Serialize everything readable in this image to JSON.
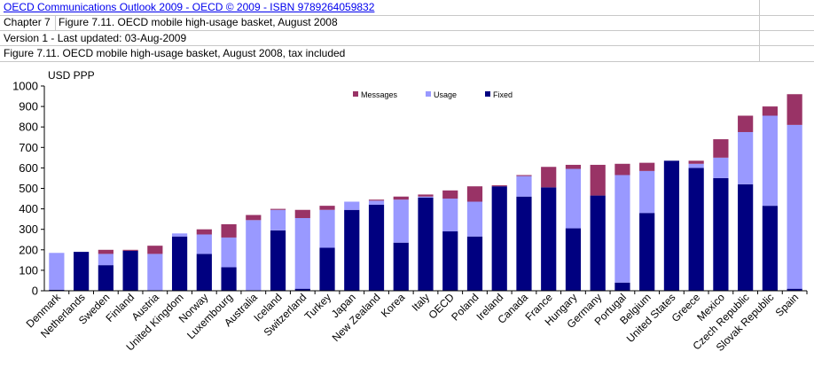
{
  "header": {
    "source_link": "OECD Communications Outlook 2009 - OECD © 2009 - ISBN 9789264059832",
    "chapter": "Chapter 7",
    "figure_title": "Figure 7.11. OECD mobile high-usage basket, August 2008",
    "version": "Version 1 - Last updated: 03-Aug-2009",
    "subtitle": "Figure 7.11. OECD mobile high-usage basket, August 2008, tax included"
  },
  "colors": {
    "fixed": "#000080",
    "usage": "#9999ff",
    "messages": "#993366"
  },
  "chart_data": {
    "type": "bar",
    "stacked": true,
    "ylabel": "USD PPP",
    "ylim": [
      0,
      1000
    ],
    "yticks": [
      0,
      100,
      200,
      300,
      400,
      500,
      600,
      700,
      800,
      900,
      1000
    ],
    "grid": false,
    "legend_position": "top-center",
    "legend_order": [
      "Messages",
      "Usage",
      "Fixed"
    ],
    "categories": [
      "Denmark",
      "Netherlands",
      "Sweden",
      "Finland",
      "Austria",
      "United Kingdom",
      "Norway",
      "Luxembourg",
      "Australia",
      "Iceland",
      "Switzerland",
      "Turkey",
      "Japan",
      "New Zealand",
      "Korea",
      "Italy",
      "OECD",
      "Poland",
      "Ireland",
      "Canada",
      "France",
      "Hungary",
      "Germany",
      "Portugal",
      "Belgium",
      "United States",
      "Greece",
      "Mexico",
      "Czech Republic",
      "Slovak Republic",
      "Spain"
    ],
    "series": [
      {
        "name": "Fixed",
        "color": "#000080",
        "values": [
          5,
          190,
          125,
          195,
          0,
          265,
          180,
          115,
          0,
          295,
          10,
          210,
          395,
          420,
          235,
          455,
          290,
          265,
          510,
          460,
          505,
          305,
          465,
          40,
          380,
          635,
          600,
          550,
          520,
          415,
          10
        ]
      },
      {
        "name": "Usage",
        "color": "#9999ff",
        "values": [
          180,
          0,
          55,
          0,
          180,
          15,
          95,
          145,
          345,
          100,
          345,
          185,
          40,
          20,
          210,
          5,
          160,
          170,
          0,
          100,
          0,
          290,
          0,
          525,
          205,
          0,
          20,
          100,
          255,
          440,
          800
        ]
      },
      {
        "name": "Messages",
        "color": "#993366",
        "values": [
          0,
          0,
          20,
          5,
          40,
          0,
          25,
          65,
          25,
          5,
          40,
          20,
          0,
          5,
          15,
          10,
          40,
          75,
          5,
          5,
          100,
          20,
          150,
          55,
          40,
          0,
          15,
          90,
          80,
          45,
          150
        ]
      }
    ]
  }
}
